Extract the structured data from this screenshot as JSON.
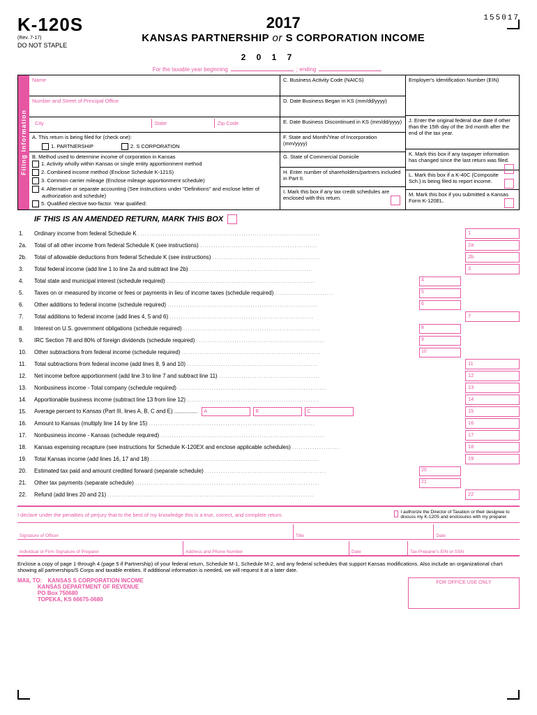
{
  "header": {
    "code": "K-120S",
    "rev": "(Rev. 7-17)",
    "nostaple": "DO NOT STAPLE",
    "year": "2017",
    "title_pre": "KANSAS PARTNERSHIP",
    "title_or": "or",
    "title_post": "S CORPORATION INCOME",
    "form_num": "155017",
    "year_spaced": "2 0 1 7"
  },
  "pinkline": {
    "pre": "For the taxable year beginning",
    "post": "; ending"
  },
  "filing": {
    "tab": "Filing Information",
    "name": "Name",
    "addr": "Number and Street of Principal Office",
    "city": "City",
    "state": "State",
    "zip": "Zip Code",
    "a": "A. This return is being filed for (check one):",
    "a1": "1. PARTNERSHIP",
    "a2": "2. S CORPORATION",
    "b": "B. Method used to determine income of corporation in Kansas",
    "m1": "1. Activity wholly within Kansas or single entity apportionment method",
    "m2": "2. Combined income method (Enclose Schedule K-121S)",
    "m3": "3. Common carrier mileage (Enclose mileage apportionment schedule)",
    "m4": "4. Alternative or separate accounting (See instructions under \"Definitions\" and enclose letter of authorization and schedule)",
    "m5": "5. Qualified elective two-factor.  Year qualified:",
    "c": "C. Business Activity Code (NAICS)",
    "d": "D. Date Business Began in KS (mm/dd/yyyy)",
    "e": "E. Date Business Discontinued in KS (mm/dd/yyyy)",
    "f": "F. State and Month/Year of Incorporation (mm/yyyy)",
    "g": "G. State of Commercial Domicile",
    "h": "H. Enter number of shareholders/partners included in Part II.",
    "i": "I.  Mark this box if any tax credit schedules are enclosed with this return.",
    "ein": "Employer's Identification Number (EIN)",
    "j": "J. Enter the original federal due date if other than the 15th day of the 3rd month after the end of the tax year.",
    "k": "K. Mark this box if any taxpayer information has changed since the last return was filed.",
    "l": "L. Mark this box if a K-40C (Composite Sch.) is being filed to report income.",
    "m": "M. Mark this box if you submitted a Kansas Form K-120EL."
  },
  "amended": "IF THIS IS AN AMENDED RETURN, MARK THIS BOX",
  "lines": [
    {
      "n": "1.",
      "t": "Ordinary income from federal Schedule K",
      "end": "1"
    },
    {
      "n": "2a.",
      "t": "Total of all other income from federal Schedule K (see instructions)",
      "end": "2a"
    },
    {
      "n": "2b.",
      "t": "Total of allowable deductions from federal Schedule K (see instructions)",
      "end": "2b"
    },
    {
      "n": "3.",
      "t": "Total federal income (add line 1 to line 2a and subtract line 2b)",
      "end": "3"
    },
    {
      "n": "4.",
      "t": "Total state and municipal interest (schedule required)",
      "mid": "4"
    },
    {
      "n": "5.",
      "t": "Taxes on or measured by income or fees or payments in lieu of income taxes (schedule required)",
      "mid": "5"
    },
    {
      "n": "6.",
      "t": "Other additions to federal income (schedule required)",
      "mid": "6"
    },
    {
      "n": "7.",
      "t": "Total additions to federal income (add lines 4, 5 and 6)",
      "end": "7"
    },
    {
      "n": "8.",
      "t": "Interest on U.S. government obligations (schedule required)",
      "mid": "8"
    },
    {
      "n": "9.",
      "t": "IRC Section 78 and 80% of foreign dividends (schedule required)",
      "mid": "9"
    },
    {
      "n": "10.",
      "t": "Other subtractions from federal income (schedule required)",
      "mid": "10"
    },
    {
      "n": "11.",
      "t": "Total subtractions from federal income (add lines 8, 9 and 10)",
      "end": "11"
    },
    {
      "n": "12.",
      "t": "Net income before apportionment (add line 3 to line 7 and subtract line 11)",
      "end": "12"
    },
    {
      "n": "13.",
      "t": "Nonbusiness income - Total company (schedule required)",
      "end": "13"
    },
    {
      "n": "14.",
      "t": "Apportionable business income (subtract line 13 from line 12)",
      "end": "14"
    },
    {
      "n": "15.",
      "t": "Average percent to Kansas (Part III, lines A, B, C and E)",
      "abc": true,
      "end": "15"
    },
    {
      "n": "16.",
      "t": "Amount to Kansas (multiply line 14 by line 15)",
      "end": "16"
    },
    {
      "n": "17.",
      "t": "Nonbusiness income - Kansas (schedule required)",
      "end": "17"
    },
    {
      "n": "18.",
      "t": "Kansas expensing recapture (see instructions for Schedule K-120EX and enclose applicable schedules)",
      "end": "18"
    },
    {
      "n": "19.",
      "t": "Total Kansas income (add lines 16, 17 and 18)",
      "end": "19"
    },
    {
      "n": "20.",
      "t": "Estimated tax paid and amount credited forward (separate schedule)",
      "mid": "20"
    },
    {
      "n": "21.",
      "t": "Other tax payments (separate schedule)",
      "mid": "21"
    },
    {
      "n": "22.",
      "t": "Refund (add lines 20 and 21)",
      "end": "22"
    }
  ],
  "declare": {
    "text": "I declare under the penalties of perjury that to the best of my knowledge this is a true, correct, and complete return.",
    "auth": "I authorize the Director of Taxation or their designee to discuss my K-120S and enclosures with my preparer."
  },
  "sig": {
    "officer": "Signature of Officer",
    "title": "Title",
    "date": "Date",
    "preparer": "Individual or Firm Signature of Preparer",
    "addrphone": "Address and Phone Number",
    "date2": "Date",
    "ein": "Tax Preparer's EIN or SSN"
  },
  "footer": "Enclose a copy of page 1 through 4 (page 5 if Partnership) of your federal return, Schedule M-1, Schedule M-2, and any federal schedules that support Kansas modifications. Also include an organizational chart showing all partnerships/S Corps and taxable entities. If additional information is needed, we will request it at a later date.",
  "mail": {
    "label": "MAIL TO:",
    "l1": "KANSAS S CORPORATION INCOME",
    "l2": "KANSAS DEPARTMENT OF REVENUE",
    "l3": "PO Box 750680",
    "l4": "TOPEKA, KS 66675-0680",
    "office": "FOR OFFICE USE ONLY"
  }
}
